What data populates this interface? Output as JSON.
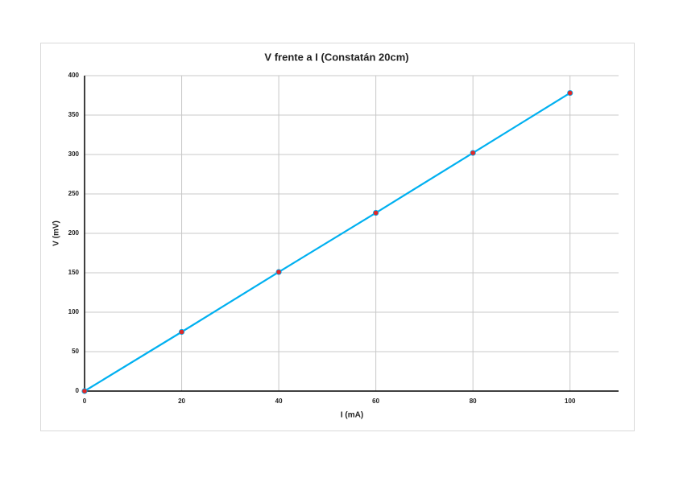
{
  "chart_data": {
    "type": "scatter-line",
    "title": "V frente a I (Constatán 20cm)",
    "x_label": "I (mA)",
    "y_label": "V (mV)",
    "x": [
      0,
      20,
      40,
      60,
      80,
      100
    ],
    "series": [
      {
        "name": "V",
        "color": "#00b0f0",
        "marker_color": "#e02828",
        "values": [
          0,
          75,
          151,
          226,
          302,
          378
        ]
      }
    ],
    "xlim": [
      0,
      110
    ],
    "xticks": [
      0,
      20,
      40,
      60,
      80,
      100
    ],
    "ylim": [
      0,
      400
    ],
    "yticks": [
      0,
      50,
      100,
      150,
      200,
      250,
      300,
      350,
      400
    ],
    "grid": true
  }
}
